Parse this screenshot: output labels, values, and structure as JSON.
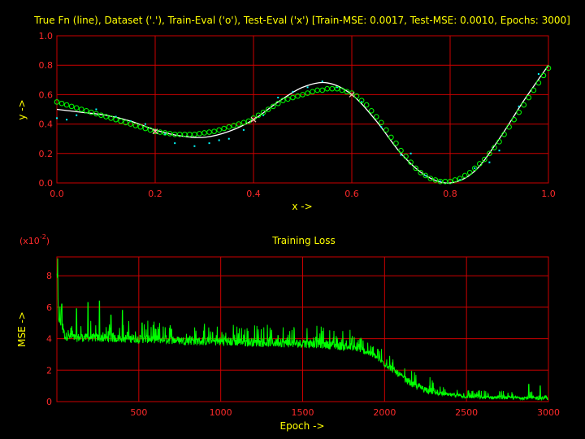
{
  "chart_data": [
    {
      "type": "scatter",
      "title": "True Fn (line), Dataset ('.'), Train-Eval ('o'), Test-Eval ('x') [Train-MSE: 0.0017, Test-MSE: 0.0010, Epochs: 3000]",
      "xlabel": "x ->",
      "ylabel": "y ->",
      "xlim": [
        0,
        1
      ],
      "ylim": [
        0,
        1
      ],
      "xticks": [
        "0.0",
        "0.2",
        "0.4",
        "0.6",
        "0.8",
        "1.0"
      ],
      "yticks": [
        "0.0",
        "0.2",
        "0.4",
        "0.6",
        "0.8",
        "1.0"
      ],
      "grid": true,
      "series": [
        {
          "kind": "true-function-line",
          "color": "#ffffff",
          "x": [
            0.0,
            0.05,
            0.1,
            0.15,
            0.2,
            0.25,
            0.3,
            0.35,
            0.4,
            0.45,
            0.5,
            0.55,
            0.6,
            0.65,
            0.7,
            0.75,
            0.8,
            0.85,
            0.9,
            0.95,
            1.0
          ],
          "y": [
            0.5,
            0.48,
            0.46,
            0.42,
            0.36,
            0.32,
            0.31,
            0.35,
            0.43,
            0.55,
            0.65,
            0.68,
            0.6,
            0.42,
            0.2,
            0.05,
            0.0,
            0.08,
            0.3,
            0.56,
            0.8
          ]
        },
        {
          "kind": "dataset-dots",
          "color": "#00ffff",
          "x": [
            0.0,
            0.02,
            0.04,
            0.08,
            0.12,
            0.15,
            0.18,
            0.22,
            0.24,
            0.28,
            0.31,
            0.33,
            0.35,
            0.38,
            0.42,
            0.45,
            0.48,
            0.51,
            0.54,
            0.57,
            0.62,
            0.66,
            0.7,
            0.72,
            0.75,
            0.78,
            0.82,
            0.85,
            0.88,
            0.9,
            0.94,
            0.98
          ],
          "y": [
            0.44,
            0.43,
            0.46,
            0.5,
            0.45,
            0.42,
            0.4,
            0.33,
            0.27,
            0.25,
            0.27,
            0.29,
            0.3,
            0.36,
            0.46,
            0.58,
            0.62,
            0.65,
            0.69,
            0.65,
            0.55,
            0.38,
            0.19,
            0.2,
            0.05,
            0.01,
            0.02,
            0.1,
            0.14,
            0.22,
            0.52,
            0.74
          ]
        },
        {
          "kind": "train-eval-circles",
          "color": "#00ff00",
          "x": [
            0.0,
            0.01,
            0.02,
            0.03,
            0.04,
            0.05,
            0.06,
            0.07,
            0.08,
            0.09,
            0.1,
            0.11,
            0.12,
            0.13,
            0.14,
            0.15,
            0.16,
            0.17,
            0.18,
            0.19,
            0.2,
            0.21,
            0.22,
            0.23,
            0.24,
            0.25,
            0.26,
            0.27,
            0.28,
            0.29,
            0.3,
            0.31,
            0.32,
            0.33,
            0.34,
            0.35,
            0.36,
            0.37,
            0.38,
            0.39,
            0.4,
            0.41,
            0.42,
            0.43,
            0.44,
            0.45,
            0.46,
            0.47,
            0.48,
            0.49,
            0.5,
            0.51,
            0.52,
            0.53,
            0.54,
            0.55,
            0.56,
            0.57,
            0.58,
            0.59,
            0.6,
            0.61,
            0.62,
            0.63,
            0.64,
            0.65,
            0.66,
            0.67,
            0.68,
            0.69,
            0.7,
            0.71,
            0.72,
            0.73,
            0.74,
            0.75,
            0.76,
            0.77,
            0.78,
            0.79,
            0.8,
            0.81,
            0.82,
            0.83,
            0.84,
            0.85,
            0.86,
            0.87,
            0.88,
            0.89,
            0.9,
            0.91,
            0.92,
            0.93,
            0.94,
            0.95,
            0.96,
            0.97,
            0.98,
            0.99,
            1.0
          ],
          "y": [
            0.55,
            0.54,
            0.53,
            0.52,
            0.51,
            0.5,
            0.49,
            0.48,
            0.47,
            0.46,
            0.45,
            0.44,
            0.43,
            0.42,
            0.41,
            0.4,
            0.39,
            0.38,
            0.37,
            0.36,
            0.35,
            0.345,
            0.34,
            0.335,
            0.33,
            0.33,
            0.33,
            0.33,
            0.33,
            0.335,
            0.34,
            0.345,
            0.35,
            0.36,
            0.37,
            0.38,
            0.39,
            0.4,
            0.41,
            0.42,
            0.44,
            0.46,
            0.48,
            0.5,
            0.52,
            0.54,
            0.56,
            0.57,
            0.58,
            0.59,
            0.6,
            0.61,
            0.62,
            0.63,
            0.63,
            0.64,
            0.64,
            0.64,
            0.63,
            0.62,
            0.61,
            0.59,
            0.56,
            0.53,
            0.49,
            0.45,
            0.41,
            0.36,
            0.31,
            0.27,
            0.22,
            0.18,
            0.14,
            0.1,
            0.07,
            0.05,
            0.03,
            0.02,
            0.01,
            0.01,
            0.01,
            0.02,
            0.03,
            0.05,
            0.07,
            0.1,
            0.13,
            0.16,
            0.2,
            0.24,
            0.28,
            0.33,
            0.38,
            0.43,
            0.48,
            0.53,
            0.58,
            0.63,
            0.68,
            0.73,
            0.78
          ]
        },
        {
          "kind": "test-eval-crosses",
          "color": "#ffb0b0",
          "x": [
            0.2,
            0.4,
            0.6
          ],
          "y": [
            0.35,
            0.43,
            0.6
          ]
        }
      ]
    },
    {
      "type": "line",
      "title": "Training Loss",
      "xlabel": "Epoch ->",
      "ylabel": "MSE ->",
      "scale_label_base": "(x10",
      "scale_label_exp": "-2",
      "scale_label_close": ")",
      "xlim": [
        0,
        3000
      ],
      "ylim": [
        0,
        9.2
      ],
      "xticks": [
        "500",
        "1000",
        "1500",
        "2000",
        "2500",
        "3000"
      ],
      "yticks": [
        "0",
        "2",
        "4",
        "6",
        "8"
      ],
      "grid": true,
      "color": "#00ff00",
      "series": [
        {
          "name": "",
          "epochs_envelope": [
            0,
            10,
            50,
            100,
            200,
            400,
            600,
            800,
            1000,
            1200,
            1400,
            1600,
            1700,
            1800,
            1850,
            1900,
            1950,
            2000,
            2050,
            2100,
            2150,
            2200,
            2300,
            2400,
            2500,
            2600,
            2800,
            3000
          ],
          "mse_baseline": [
            8.4,
            5.2,
            4.0,
            3.9,
            3.9,
            3.85,
            3.8,
            3.7,
            3.65,
            3.6,
            3.55,
            3.5,
            3.4,
            3.3,
            3.2,
            3.0,
            2.7,
            2.3,
            1.9,
            1.5,
            1.1,
            0.8,
            0.5,
            0.35,
            0.25,
            0.2,
            0.18,
            0.15
          ],
          "spikes": [
            {
              "epoch": 5,
              "mse": 9.1
            },
            {
              "epoch": 30,
              "mse": 6.2
            },
            {
              "epoch": 120,
              "mse": 5.9
            },
            {
              "epoch": 190,
              "mse": 6.3
            },
            {
              "epoch": 260,
              "mse": 6.4
            },
            {
              "epoch": 330,
              "mse": 5.5
            },
            {
              "epoch": 400,
              "mse": 5.8
            },
            {
              "epoch": 520,
              "mse": 5.0
            },
            {
              "epoch": 700,
              "mse": 4.6
            },
            {
              "epoch": 950,
              "mse": 4.4
            },
            {
              "epoch": 1350,
              "mse": 4.2
            },
            {
              "epoch": 1580,
              "mse": 4.1
            },
            {
              "epoch": 1800,
              "mse": 4.0
            },
            {
              "epoch": 1960,
              "mse": 3.3
            },
            {
              "epoch": 2880,
              "mse": 1.1
            },
            {
              "epoch": 2950,
              "mse": 1.0
            }
          ]
        }
      ]
    }
  ]
}
